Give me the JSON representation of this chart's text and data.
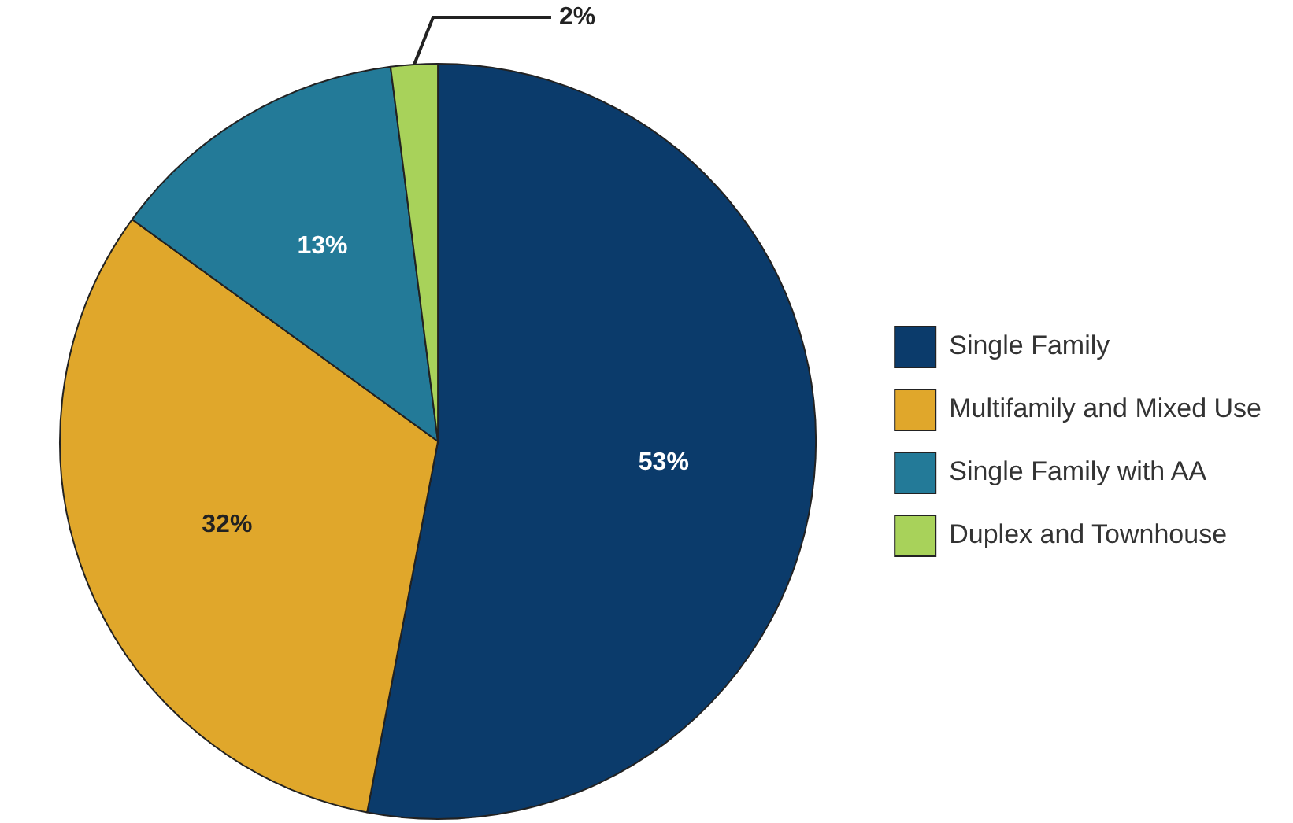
{
  "chart_data": {
    "type": "pie",
    "categories": [
      "Single Family",
      "Multifamily and Mixed Use",
      "Single Family with AA",
      "Duplex and Townhouse"
    ],
    "values": [
      53,
      32,
      13,
      2
    ],
    "colors": [
      "#0b3b6b",
      "#e0a72b",
      "#237a98",
      "#a8d25a"
    ],
    "value_labels": [
      "53%",
      "32%",
      "13%",
      "2%"
    ],
    "legend": "right"
  }
}
